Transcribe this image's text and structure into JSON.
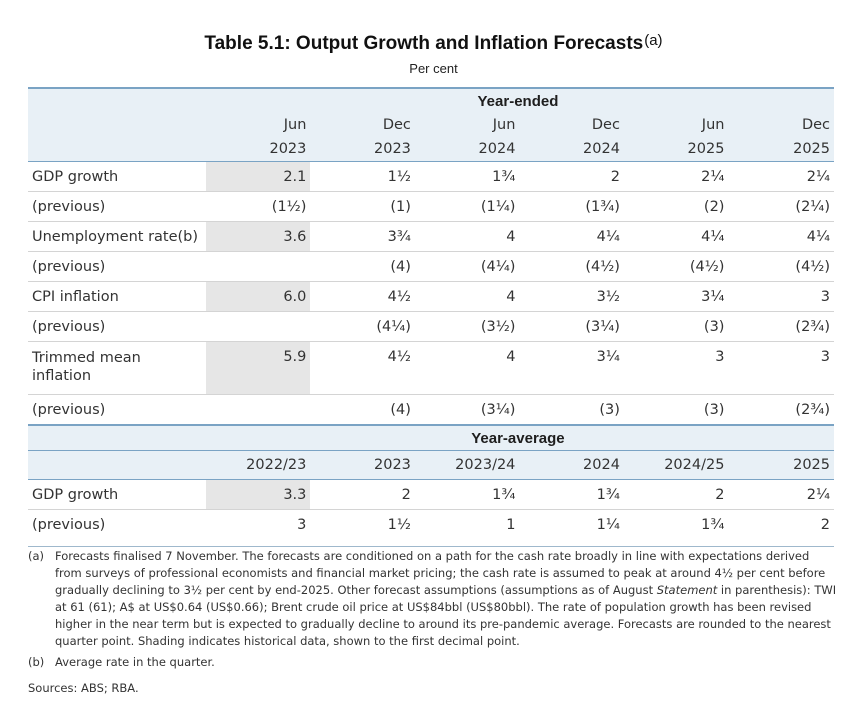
{
  "title": "Table 5.1: Output Growth and Inflation Forecasts",
  "title_note": "(a)",
  "subtitle": "Per cent",
  "year_ended": {
    "section_label": "Year-ended",
    "col_months": [
      "Jun",
      "Dec",
      "Jun",
      "Dec",
      "Jun",
      "Dec"
    ],
    "col_years": [
      "2023",
      "2023",
      "2024",
      "2024",
      "2025",
      "2025"
    ],
    "rows": [
      {
        "label": "GDP growth",
        "values": [
          "2.1",
          "1½",
          "1¾",
          "2",
          "2¼",
          "2¼"
        ]
      },
      {
        "label": "(previous)",
        "values": [
          "(1½)",
          "(1)",
          "(1¼)",
          "(1¾)",
          "(2)",
          "(2¼)"
        ]
      },
      {
        "label": "Unemployment rate(b)",
        "values": [
          "3.6",
          "3¾",
          "4",
          "4¼",
          "4¼",
          "4¼"
        ]
      },
      {
        "label": "(previous)",
        "values": [
          "",
          "(4)",
          "(4¼)",
          "(4½)",
          "(4½)",
          "(4½)"
        ]
      },
      {
        "label": "CPI inflation",
        "values": [
          "6.0",
          "4½",
          "4",
          "3½",
          "3¼",
          "3"
        ]
      },
      {
        "label": "(previous)",
        "values": [
          "",
          "(4¼)",
          "(3½)",
          "(3¼)",
          "(3)",
          "(2¾)"
        ]
      },
      {
        "label": "Trimmed mean inflation",
        "values": [
          "5.9",
          "4½",
          "4",
          "3¼",
          "3",
          "3"
        ]
      },
      {
        "label": "(previous)",
        "values": [
          "",
          "(4)",
          "(3¼)",
          "(3)",
          "(3)",
          "(2¾)"
        ]
      }
    ]
  },
  "year_average": {
    "section_label": "Year-average",
    "cols": [
      "2022/23",
      "2023",
      "2023/24",
      "2024",
      "2024/25",
      "2025"
    ],
    "rows": [
      {
        "label": "GDP growth",
        "values": [
          "3.3",
          "2",
          "1¾",
          "1¾",
          "2",
          "2¼"
        ]
      },
      {
        "label": "(previous)",
        "values": [
          "3",
          "1½",
          "1",
          "1¼",
          "1¾",
          "2"
        ]
      }
    ]
  },
  "notes": {
    "a_key": "(a)",
    "a_text_1": "Forecasts finalised 7 November. The forecasts are conditioned on a path for the cash rate broadly in line with expectations derived from surveys of professional economists and financial market pricing; the cash rate is assumed to peak at around 4½ per cent before gradually declining to 3½ per cent by end-2025. Other forecast assumptions (assumptions as of August ",
    "a_text_italic": "Statement",
    "a_text_2": " in parenthesis): TWI at 61 (61); A$ at US$0.64 (US$0.66); Brent crude oil price at US$84bbl (US$80bbl). The rate of population growth has been revised higher in the near term but is expected to gradually decline to around its pre-pandemic average. Forecasts are rounded to the nearest quarter point. Shading indicates historical data, shown to the first decimal point.",
    "b_key": "(b)",
    "b_text": "Average rate in the quarter.",
    "sources": "Sources: ABS; RBA."
  }
}
